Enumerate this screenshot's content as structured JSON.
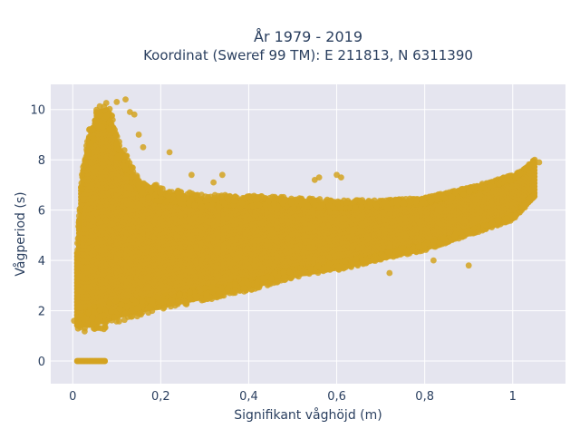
{
  "chart_data": {
    "type": "scatter",
    "title": "År 1979 - 2019",
    "subtitle": "Koordinat (Sweref 99 TM): E 211813, N 6311390",
    "xlabel": "Signifikant våghöjd (m)",
    "ylabel": "Vågperiod (s)",
    "xlim": [
      -0.05,
      1.12
    ],
    "ylim": [
      -0.9,
      11
    ],
    "x_ticks": [
      0,
      0.2,
      0.4,
      0.6,
      0.8,
      1
    ],
    "x_tick_labels": [
      "0",
      "0,2",
      "0,4",
      "0,6",
      "0,8",
      "1"
    ],
    "y_ticks": [
      0,
      2,
      4,
      6,
      8,
      10
    ],
    "y_tick_labels": [
      "0",
      "2",
      "4",
      "6",
      "8",
      "10"
    ],
    "grid": true,
    "legend": "none",
    "marker_color": "#d4a320",
    "background_color": "#e5e5ef",
    "series": [
      {
        "point_cloud_envelope": {
          "x": [
            0.01,
            0.02,
            0.04,
            0.06,
            0.08,
            0.1,
            0.15,
            0.2,
            0.3,
            0.4,
            0.5,
            0.6,
            0.7,
            0.8,
            0.9,
            1.0,
            1.05
          ],
          "y_min": [
            1.3,
            1.2,
            1.1,
            1.2,
            1.3,
            1.5,
            1.8,
            2.0,
            2.4,
            2.8,
            3.3,
            3.6,
            4.0,
            4.4,
            5.0,
            5.6,
            6.5
          ],
          "y_max": [
            4.5,
            7.5,
            9.5,
            10.3,
            10.4,
            9.0,
            7.3,
            6.9,
            6.6,
            6.6,
            6.5,
            6.4,
            6.4,
            6.5,
            6.9,
            7.4,
            8.0
          ]
        },
        "zero_period_band": {
          "x_range": [
            0.01,
            0.075
          ],
          "y": 0
        },
        "outliers": [
          [
            0.003,
            1.6
          ],
          [
            0.12,
            10.4
          ],
          [
            0.1,
            10.3
          ],
          [
            0.14,
            9.8
          ],
          [
            0.13,
            9.9
          ],
          [
            0.15,
            9.0
          ],
          [
            0.16,
            8.5
          ],
          [
            0.27,
            7.4
          ],
          [
            0.34,
            7.4
          ],
          [
            0.19,
            7.0
          ],
          [
            0.32,
            7.1
          ],
          [
            0.55,
            7.2
          ],
          [
            0.6,
            7.4
          ],
          [
            0.9,
            3.8
          ],
          [
            0.72,
            3.5
          ],
          [
            0.82,
            4.0
          ],
          [
            1.05,
            8.0
          ],
          [
            1.06,
            7.9
          ],
          [
            0.22,
            8.3
          ],
          [
            0.61,
            7.3
          ],
          [
            0.56,
            7.3
          ]
        ]
      }
    ]
  }
}
